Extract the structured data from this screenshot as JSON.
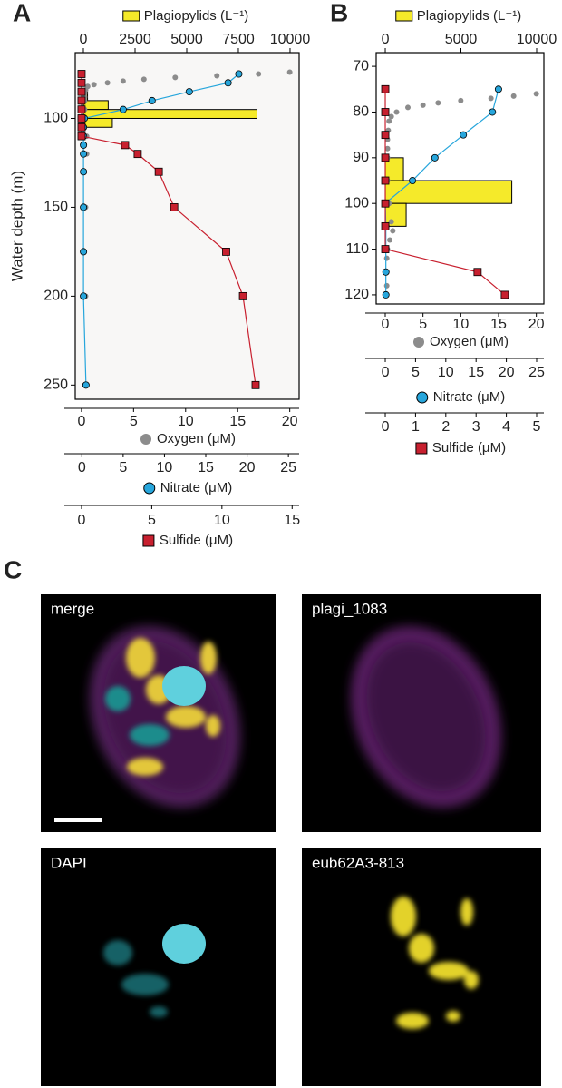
{
  "panel_labels": [
    "A",
    "B",
    "C"
  ],
  "chart_data": [
    {
      "type": "profile",
      "y_label": "Water depth (m)",
      "ylim": [
        63,
        258
      ],
      "y_inverted": true,
      "yticks": [
        100,
        150,
        200,
        250
      ],
      "series": [
        {
          "name": "Plagiopylids (L⁻¹)",
          "type": "bar",
          "axis": "top",
          "color": "#f5ea2a",
          "bins": [
            85,
            90,
            95,
            100,
            105
          ],
          "values": [
            200,
            1200,
            8400,
            1400
          ],
          "xlim": [
            -395,
            10440
          ],
          "xticks": [
            0,
            2500,
            5000,
            7500,
            10000
          ]
        },
        {
          "name": "Oxygen (μM)",
          "type": "scatter",
          "axis": "bottom",
          "color": "#8c8c8c",
          "marker": "circle",
          "depth": [
            74,
            75,
            76,
            77,
            78,
            79,
            80,
            81,
            82,
            84,
            86,
            88,
            90,
            95,
            100,
            110,
            120,
            150,
            200,
            250
          ],
          "values": [
            20,
            17,
            13,
            9,
            6,
            4,
            2.5,
            1.2,
            0.6,
            0.4,
            0.3,
            0.3,
            0.3,
            0.3,
            0.3,
            0.5,
            0.5,
            0.4,
            0.4,
            0.3
          ],
          "xlim": [
            -0.6,
            20.9
          ],
          "xticks": [
            0,
            5,
            10,
            15,
            20
          ]
        },
        {
          "name": "Nitrate (μM)",
          "type": "line",
          "axis": "bottom",
          "color": "#27a6dc",
          "marker": "circle",
          "depth": [
            75,
            80,
            85,
            90,
            95,
            100,
            105,
            110,
            115,
            120,
            130,
            150,
            175,
            200,
            250
          ],
          "values": [
            19,
            17.7,
            13,
            8.5,
            5,
            0.3,
            0.2,
            0.2,
            0.2,
            0.2,
            0.2,
            0.2,
            0.2,
            0.2,
            0.5
          ],
          "xlim": [
            -0.8,
            26.3
          ],
          "xticks": [
            0,
            5,
            10,
            15,
            20,
            25
          ]
        },
        {
          "name": "Sulfide (μM)",
          "type": "line",
          "axis": "bottom",
          "color": "#c8202f",
          "marker": "square",
          "depth": [
            75,
            80,
            85,
            90,
            95,
            100,
            105,
            110,
            115,
            120,
            130,
            150,
            175,
            200,
            250
          ],
          "values": [
            0,
            0,
            0,
            0,
            0,
            0,
            0,
            0,
            3.1,
            4.0,
            5.5,
            6.6,
            10.3,
            11.5,
            12.4
          ],
          "xlim": [
            -0.45,
            15.5
          ],
          "xticks": [
            0,
            5,
            10,
            15
          ]
        }
      ]
    },
    {
      "type": "profile",
      "ylim": [
        67,
        122
      ],
      "y_inverted": true,
      "yticks": [
        70,
        80,
        90,
        100,
        110,
        120
      ],
      "series": [
        {
          "name": "Plagiopylids (L⁻¹)",
          "type": "bar",
          "axis": "top",
          "color": "#f5ea2a",
          "bins": [
            90,
            95,
            100,
            105
          ],
          "values": [
            1200,
            8360,
            1380
          ],
          "xlim": [
            -600,
            10480
          ],
          "xticks": [
            0,
            5000,
            10000
          ]
        },
        {
          "name": "Oxygen (μM)",
          "type": "scatter",
          "axis": "bottom",
          "color": "#8c8c8c",
          "marker": "circle",
          "depth": [
            76,
            76.5,
            77,
            77.5,
            78,
            78.5,
            79,
            80,
            81,
            82,
            84,
            86,
            88,
            90,
            95,
            100,
            104,
            106,
            108,
            110,
            112,
            115,
            118,
            120
          ],
          "values": [
            20,
            17,
            14,
            10,
            7,
            5,
            3,
            1.5,
            0.8,
            0.5,
            0.4,
            0.3,
            0.3,
            0.3,
            0.3,
            0.5,
            0.8,
            1,
            0.6,
            0.3,
            0.2,
            0.2,
            0.2,
            0.2
          ],
          "xlim": [
            -1.2,
            21
          ],
          "xticks": [
            0,
            5,
            10,
            15,
            20
          ]
        },
        {
          "name": "Nitrate (μM)",
          "type": "line",
          "axis": "bottom",
          "color": "#27a6dc",
          "marker": "circle",
          "depth": [
            75,
            80,
            85,
            90,
            95,
            100,
            105,
            110,
            115,
            120
          ],
          "values": [
            18.7,
            17.7,
            12.9,
            8.2,
            4.5,
            0,
            0.1,
            0.1,
            0.1,
            0.1
          ],
          "xlim": [
            -1.5,
            26.2
          ],
          "xticks": [
            0,
            5,
            10,
            15,
            20,
            25
          ]
        },
        {
          "name": "Sulfide (μM)",
          "type": "line",
          "axis": "bottom",
          "color": "#c8202f",
          "marker": "square",
          "depth": [
            75,
            80,
            85,
            90,
            95,
            100,
            105,
            110,
            115,
            120
          ],
          "values": [
            0,
            0,
            0,
            0,
            0,
            0,
            0,
            0,
            3.05,
            3.95
          ],
          "xlim": [
            -0.3,
            5.24
          ],
          "xticks": [
            0,
            1,
            2,
            3,
            4,
            5
          ]
        }
      ]
    }
  ],
  "micrographs": [
    {
      "label": "merge"
    },
    {
      "label": "plagi_1083"
    },
    {
      "label": "DAPI"
    },
    {
      "label": "eub62A3-813"
    }
  ]
}
